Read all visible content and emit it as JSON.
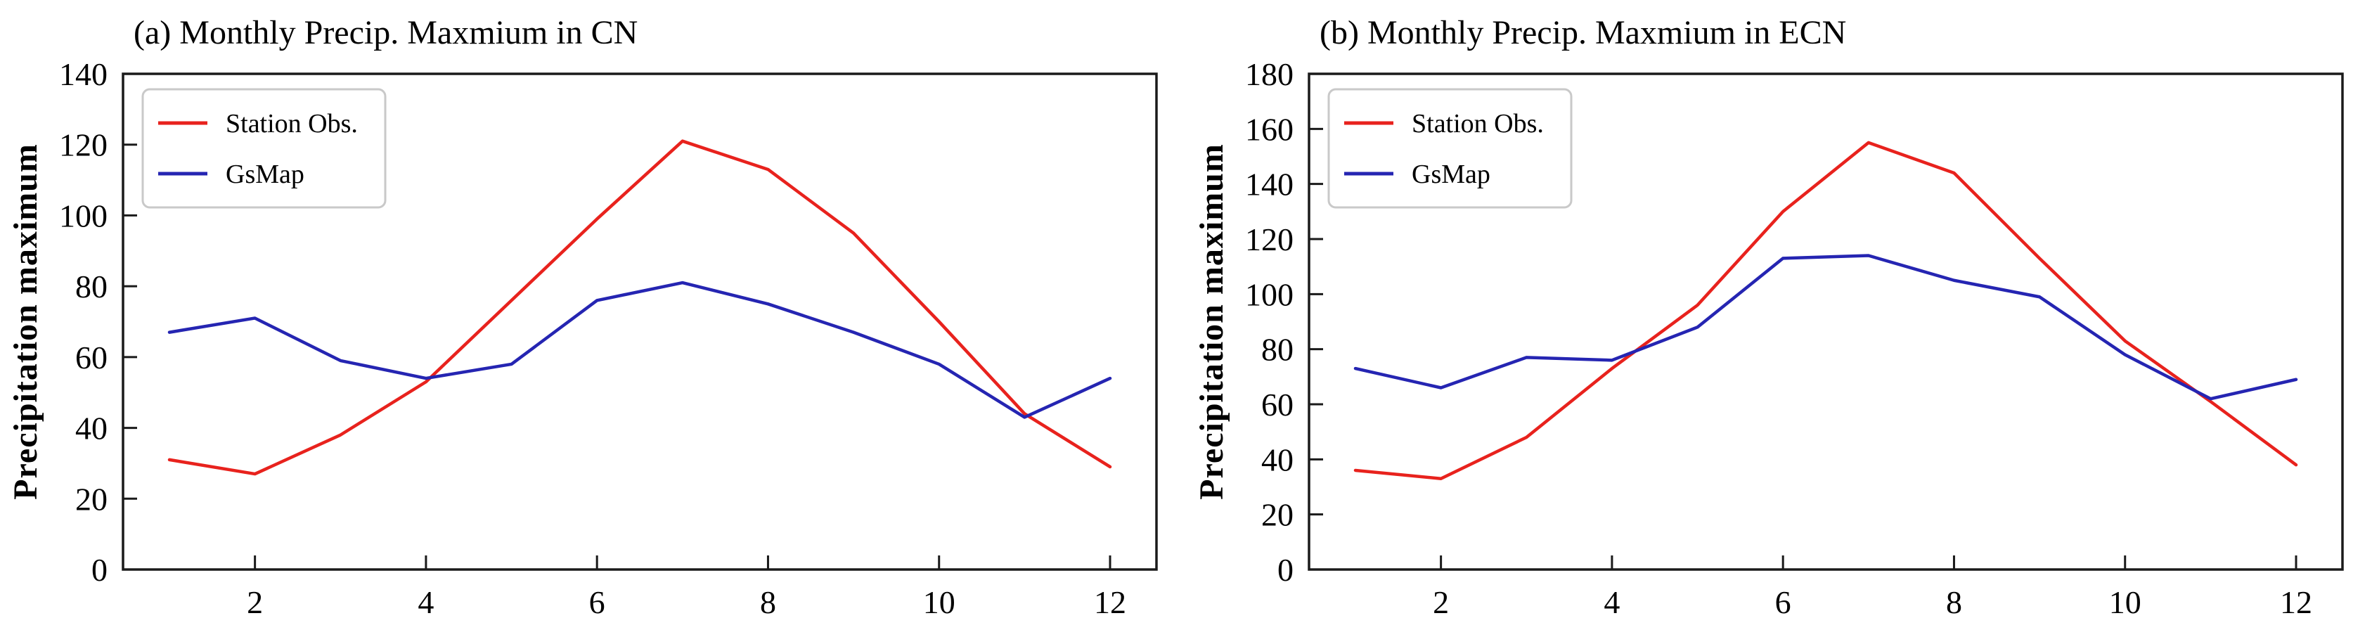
{
  "figure": {
    "background": "#ffffff",
    "axis_color": "#1a1a1a",
    "text_color": "#000000",
    "legend_border_color": "#c9c9c9",
    "legend_background": "#ffffff"
  },
  "chart_data": [
    {
      "type": "line",
      "title": "(a) Monthly Precip. Maxmium in CN",
      "xlabel": "",
      "ylabel": "Precipitation maximum",
      "x": [
        1,
        2,
        3,
        4,
        5,
        6,
        7,
        8,
        9,
        10,
        11,
        12
      ],
      "xticks": [
        2,
        4,
        6,
        8,
        10,
        12
      ],
      "ylim": [
        0,
        140
      ],
      "ytick_step": 20,
      "grid": false,
      "legend_position": "upper left",
      "series": [
        {
          "name": "Station Obs.",
          "color": "#e8221d",
          "values": [
            31,
            27,
            38,
            53,
            76,
            99,
            121,
            113,
            95,
            70,
            44,
            29
          ]
        },
        {
          "name": "GsMap",
          "color": "#2525b2",
          "values": [
            67,
            71,
            59,
            54,
            58,
            76,
            81,
            75,
            67,
            58,
            43,
            54
          ]
        }
      ]
    },
    {
      "type": "line",
      "title": "(b) Monthly Precip. Maxmium in ECN",
      "xlabel": "",
      "ylabel": "Precipitation maximum",
      "x": [
        1,
        2,
        3,
        4,
        5,
        6,
        7,
        8,
        9,
        10,
        11,
        12
      ],
      "xticks": [
        2,
        4,
        6,
        8,
        10,
        12
      ],
      "ylim": [
        0,
        180
      ],
      "ytick_step": 20,
      "grid": false,
      "legend_position": "upper left",
      "series": [
        {
          "name": "Station Obs.",
          "color": "#e8221d",
          "values": [
            36,
            33,
            48,
            73,
            96,
            130,
            155,
            144,
            113,
            83,
            61,
            38
          ]
        },
        {
          "name": "GsMap",
          "color": "#2525b2",
          "values": [
            73,
            66,
            77,
            76,
            88,
            113,
            114,
            105,
            99,
            78,
            62,
            69
          ]
        }
      ]
    }
  ]
}
